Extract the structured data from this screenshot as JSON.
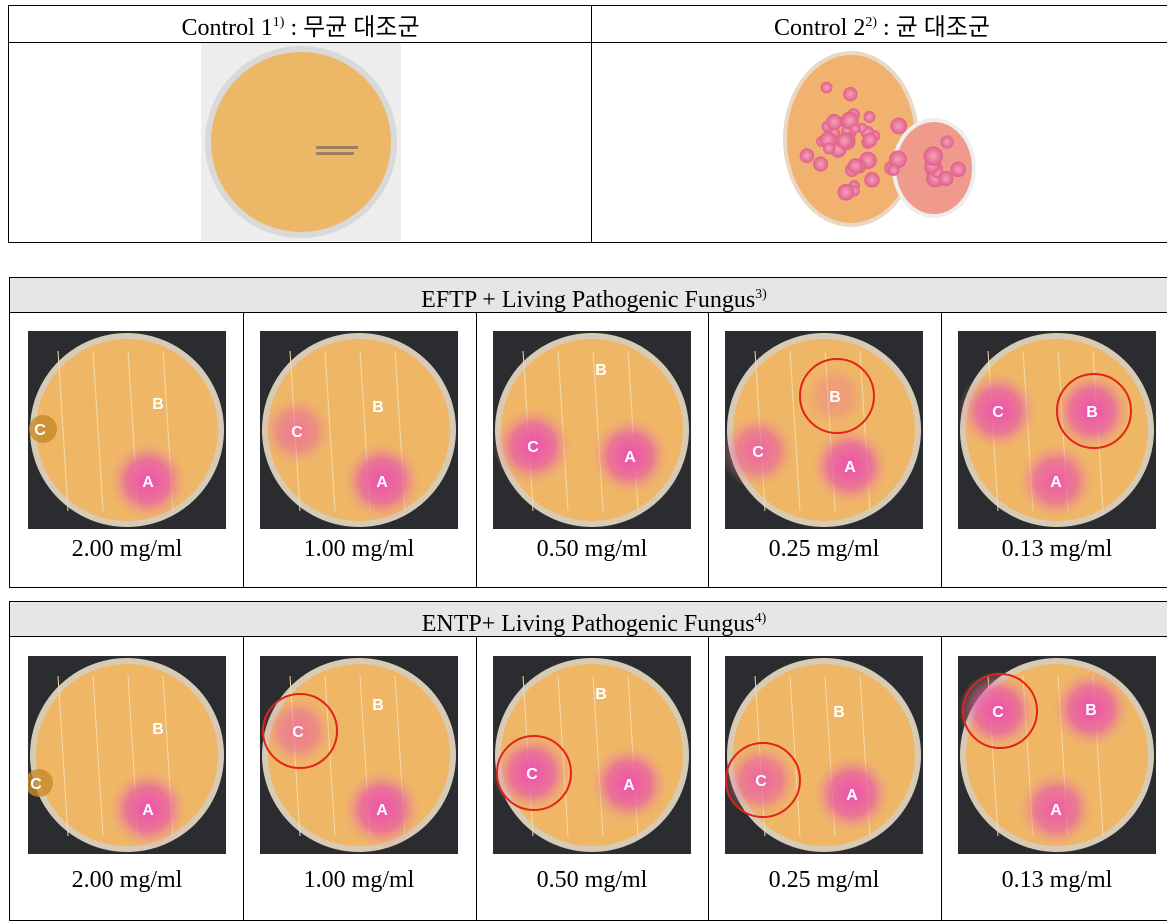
{
  "controls": [
    {
      "label": "Control 1",
      "note": "1)",
      "desc": ": 무균 대조군"
    },
    {
      "label": "Control 2",
      "note": "2)",
      "desc": ": 균 대조군"
    }
  ],
  "panels": [
    {
      "title": "EFTP + Living Pathogenic Fungus",
      "note": "3)",
      "plates": [
        {
          "concentration": "2.00 mg/ml",
          "spots": [
            "A",
            "B",
            "C"
          ]
        },
        {
          "concentration": "1.00 mg/ml",
          "spots": [
            "A",
            "B",
            "C"
          ]
        },
        {
          "concentration": "0.50 mg/ml",
          "spots": [
            "A",
            "B",
            "C"
          ]
        },
        {
          "concentration": "0.25 mg/ml",
          "spots": [
            "A",
            "B",
            "C"
          ]
        },
        {
          "concentration": "0.13 mg/ml",
          "spots": [
            "A",
            "B",
            "C"
          ]
        }
      ]
    },
    {
      "title": "ENTP+ Living Pathogenic Fungus",
      "note": "4)",
      "plates": [
        {
          "concentration": "2.00 mg/ml",
          "spots": [
            "A",
            "B",
            "C"
          ]
        },
        {
          "concentration": "1.00 mg/ml",
          "spots": [
            "A",
            "B",
            "C"
          ]
        },
        {
          "concentration": "0.50 mg/ml",
          "spots": [
            "A",
            "B",
            "C"
          ]
        },
        {
          "concentration": "0.25 mg/ml",
          "spots": [
            "A",
            "B",
            "C"
          ]
        },
        {
          "concentration": "0.13 mg/ml",
          "spots": [
            "A",
            "B",
            "C"
          ]
        }
      ]
    }
  ]
}
